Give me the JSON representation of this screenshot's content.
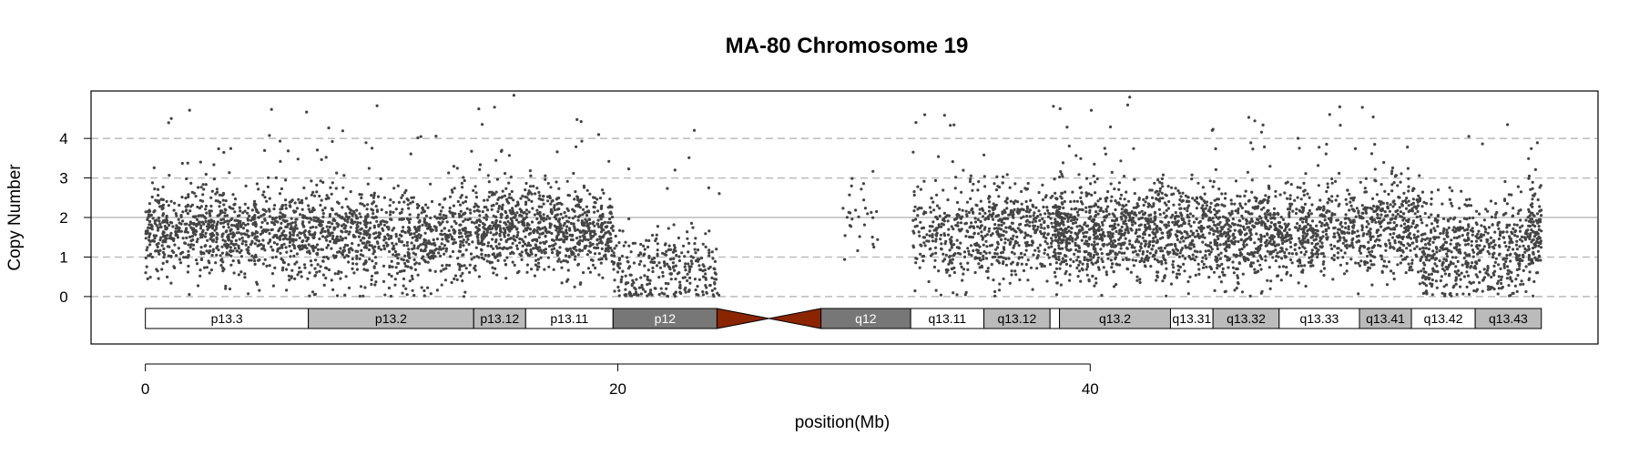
{
  "chart_data": {
    "type": "scatter",
    "title": "MA-80  Chromosome 19",
    "xlabel": "position(Mb)",
    "ylabel": "Copy Number",
    "x_ticks": [
      0,
      20,
      40
    ],
    "y_ticks": [
      0,
      1,
      2,
      3,
      4
    ],
    "xlim": [
      -2.3,
      61.5
    ],
    "ylim": [
      -1.2,
      5.2
    ],
    "reference_lines": [
      {
        "y": 0,
        "style": "dashed"
      },
      {
        "y": 1,
        "style": "dashed"
      },
      {
        "y": 2,
        "style": "solid"
      },
      {
        "y": 3,
        "style": "dashed"
      },
      {
        "y": 4,
        "style": "dashed"
      }
    ],
    "point_color": "#444444",
    "segments": [
      {
        "x": [
          0.0,
          6.9
        ],
        "median": 1.6,
        "spread": 0.55,
        "points": 900
      },
      {
        "x": [
          6.9,
          14.0
        ],
        "median": 1.5,
        "spread": 0.6,
        "points": 900
      },
      {
        "x": [
          14.0,
          19.8
        ],
        "median": 1.7,
        "spread": 0.55,
        "points": 850
      },
      {
        "x": [
          19.8,
          24.3
        ],
        "median": 0.6,
        "spread": 0.55,
        "points": 300
      },
      {
        "x": [
          29.5,
          31.0
        ],
        "median": 2.2,
        "spread": 0.6,
        "points": 30
      },
      {
        "x": [
          32.5,
          36.0
        ],
        "median": 1.5,
        "spread": 0.6,
        "points": 350
      },
      {
        "x": [
          36.0,
          39.0
        ],
        "median": 1.7,
        "spread": 0.6,
        "points": 350
      },
      {
        "x": [
          38.5,
          50.0
        ],
        "median": 1.6,
        "spread": 0.6,
        "points": 1700
      },
      {
        "x": [
          50.0,
          54.0
        ],
        "median": 1.7,
        "spread": 0.6,
        "points": 500
      },
      {
        "x": [
          54.0,
          58.5
        ],
        "median": 1.2,
        "spread": 0.65,
        "points": 550
      },
      {
        "x": [
          58.5,
          59.1
        ],
        "median": 1.6,
        "spread": 0.6,
        "points": 120
      }
    ],
    "ideogram": {
      "bands": [
        {
          "name": "p13.3",
          "start": 0.0,
          "end": 6.9,
          "fill": "#ffffff",
          "text": "#000000"
        },
        {
          "name": "p13.2",
          "start": 6.9,
          "end": 13.9,
          "fill": "#bbbbbb",
          "text": "#000000"
        },
        {
          "name": "p13.12",
          "start": 13.9,
          "end": 16.1,
          "fill": "#bbbbbb",
          "text": "#000000"
        },
        {
          "name": "p13.11",
          "start": 16.1,
          "end": 19.8,
          "fill": "#ffffff",
          "text": "#000000"
        },
        {
          "name": "p12",
          "start": 19.8,
          "end": 24.2,
          "fill": "#777777",
          "text": "#ffffff"
        },
        {
          "name": "q12",
          "start": 28.6,
          "end": 32.4,
          "fill": "#777777",
          "text": "#ffffff"
        },
        {
          "name": "q13.11",
          "start": 32.4,
          "end": 35.5,
          "fill": "#ffffff",
          "text": "#000000"
        },
        {
          "name": "q13.12",
          "start": 35.5,
          "end": 38.3,
          "fill": "#bbbbbb",
          "text": "#000000"
        },
        {
          "name": "",
          "start": 38.3,
          "end": 38.7,
          "fill": "#ffffff",
          "text": "#000000"
        },
        {
          "name": "q13.2",
          "start": 38.7,
          "end": 43.4,
          "fill": "#bbbbbb",
          "text": "#000000"
        },
        {
          "name": "q13.31",
          "start": 43.4,
          "end": 45.2,
          "fill": "#ffffff",
          "text": "#000000"
        },
        {
          "name": "q13.32",
          "start": 45.2,
          "end": 48.0,
          "fill": "#bbbbbb",
          "text": "#000000"
        },
        {
          "name": "q13.33",
          "start": 48.0,
          "end": 51.4,
          "fill": "#ffffff",
          "text": "#000000"
        },
        {
          "name": "q13.41",
          "start": 51.4,
          "end": 53.6,
          "fill": "#bbbbbb",
          "text": "#000000"
        },
        {
          "name": "q13.42",
          "start": 53.6,
          "end": 56.3,
          "fill": "#ffffff",
          "text": "#000000"
        },
        {
          "name": "q13.43",
          "start": 56.3,
          "end": 59.1,
          "fill": "#bbbbbb",
          "text": "#000000"
        }
      ],
      "centromere": {
        "start": 24.2,
        "end": 28.6,
        "color": "#8b2500"
      }
    }
  }
}
